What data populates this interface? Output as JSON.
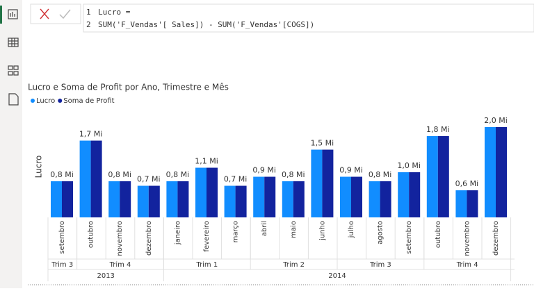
{
  "formula": {
    "line_numbers": [
      "1",
      "2"
    ],
    "lines": [
      "Lucro =",
      "SUM('F_Vendas'[ Sales]) - SUM('F_Vendas'[COGS])"
    ]
  },
  "chart_data": {
    "type": "bar",
    "title": "Lucro e Soma de Profit por Ano, Trimestre e Mês",
    "y_label": "Lucro",
    "years": [
      {
        "label": "2013",
        "quarters": [
          {
            "label": "Trim 3",
            "months": [
              "setembro"
            ]
          },
          {
            "label": "Trim 4",
            "months": [
              "outubro",
              "novembro",
              "dezembro"
            ]
          }
        ]
      },
      {
        "label": "2014",
        "quarters": [
          {
            "label": "Trim 1",
            "months": [
              "janeiro",
              "fevereiro",
              "março"
            ]
          },
          {
            "label": "Trim 2",
            "months": [
              "abril",
              "maio",
              "junho"
            ]
          },
          {
            "label": "Trim 3",
            "months": [
              "julho",
              "agosto",
              "setembro"
            ]
          },
          {
            "label": "Trim 4",
            "months": [
              "outubro",
              "novembro",
              "dezembro"
            ]
          }
        ]
      }
    ],
    "series": [
      {
        "name": "Lucro",
        "color": "#118dff",
        "values": [
          0.8,
          1.7,
          0.8,
          0.7,
          0.8,
          1.1,
          0.7,
          0.9,
          0.8,
          1.5,
          0.9,
          0.8,
          1.0,
          1.8,
          0.6,
          2.0
        ],
        "value_labels": [
          "0,8 Mi",
          "1,7 Mi",
          "0,8 Mi",
          "0,7 Mi",
          "0,8 Mi",
          "1,1 Mi",
          "0,7 Mi",
          "0,9 Mi",
          "0,8 Mi",
          "1,5 Mi",
          "0,9 Mi",
          "0,8 Mi",
          "1,0 Mi",
          "1,8 Mi",
          "0,6 Mi",
          "2,0 Mi"
        ]
      },
      {
        "name": "Soma de Profit",
        "color": "#12239e",
        "values": [
          0.8,
          1.7,
          0.8,
          0.7,
          0.8,
          1.1,
          0.7,
          0.9,
          0.8,
          1.5,
          0.9,
          0.8,
          1.0,
          1.8,
          0.6,
          2.0
        ]
      }
    ]
  }
}
